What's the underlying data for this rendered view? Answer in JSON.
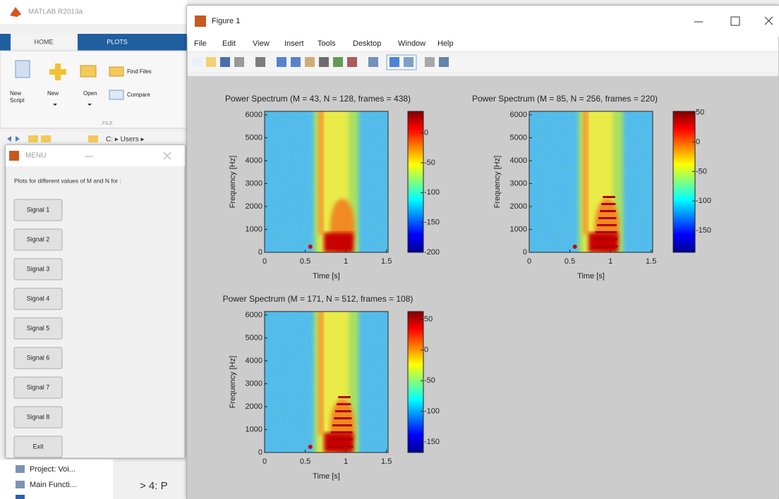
{
  "matlab": {
    "title": "MATLAB R2013a",
    "tabs": [
      "HOME",
      "PLOTS"
    ],
    "ribbon": {
      "new_script": [
        "New",
        "Script"
      ],
      "new": "New",
      "open": "Open",
      "find_files": "Find Files",
      "compare": "Compare",
      "section": "FILE"
    },
    "path": "C: ▸ Users ▸"
  },
  "menu_window": {
    "title": "MENU",
    "prompt": "Plots for different values of M and N for :",
    "buttons": [
      "Signal 1",
      "Signal 2",
      "Signal 3",
      "Signal 4",
      "Signal 5",
      "Signal 6",
      "Signal 7",
      "Signal 8",
      "Exit"
    ]
  },
  "workspace": {
    "items": [
      "Project: Voi...",
      "Main Functi..."
    ],
    "command": "> 4: P"
  },
  "figure": {
    "title": "Figure 1",
    "menu": [
      "File",
      "Edit",
      "View",
      "Insert",
      "Tools",
      "Desktop",
      "Window",
      "Help"
    ],
    "plots": [
      {
        "title": "Power Spectrum (M = 43, N = 128, frames = 438)",
        "xlabel": "Time [s]",
        "ylabel": "Frequency [Hz]",
        "xlim": [
          0,
          1.52
        ],
        "xticks": [
          0,
          0.5,
          1,
          1.5
        ],
        "ylim": [
          0,
          6150
        ],
        "yticks": [
          0,
          1000,
          2000,
          3000,
          4000,
          5000,
          6000
        ],
        "clim": [
          -200,
          36
        ],
        "cticks": [
          -200,
          -150,
          -100,
          -50,
          0
        ]
      },
      {
        "title": "Power Spectrum (M = 85, N = 256, frames = 220)",
        "xlabel": "Time [s]",
        "ylabel": "Frequency [Hz]",
        "xlim": [
          0,
          1.52
        ],
        "xticks": [
          0,
          0.5,
          1,
          1.5
        ],
        "ylim": [
          0,
          6150
        ],
        "yticks": [
          0,
          1000,
          2000,
          3000,
          4000,
          5000,
          6000
        ],
        "clim": [
          -187,
          52
        ],
        "cticks": [
          -150,
          -100,
          -50,
          0,
          50
        ]
      },
      {
        "title": "Power Spectrum (M = 171, N = 512, frames = 108)",
        "xlabel": "Time [s]",
        "ylabel": "Frequency [Hz]",
        "xlim": [
          0,
          1.52
        ],
        "xticks": [
          0,
          0.5,
          1,
          1.5
        ],
        "ylim": [
          0,
          6150
        ],
        "yticks": [
          0,
          1000,
          2000,
          3000,
          4000,
          5000,
          6000
        ],
        "clim": [
          -167,
          63
        ],
        "cticks": [
          -150,
          -100,
          -50,
          0,
          50
        ]
      }
    ]
  }
}
